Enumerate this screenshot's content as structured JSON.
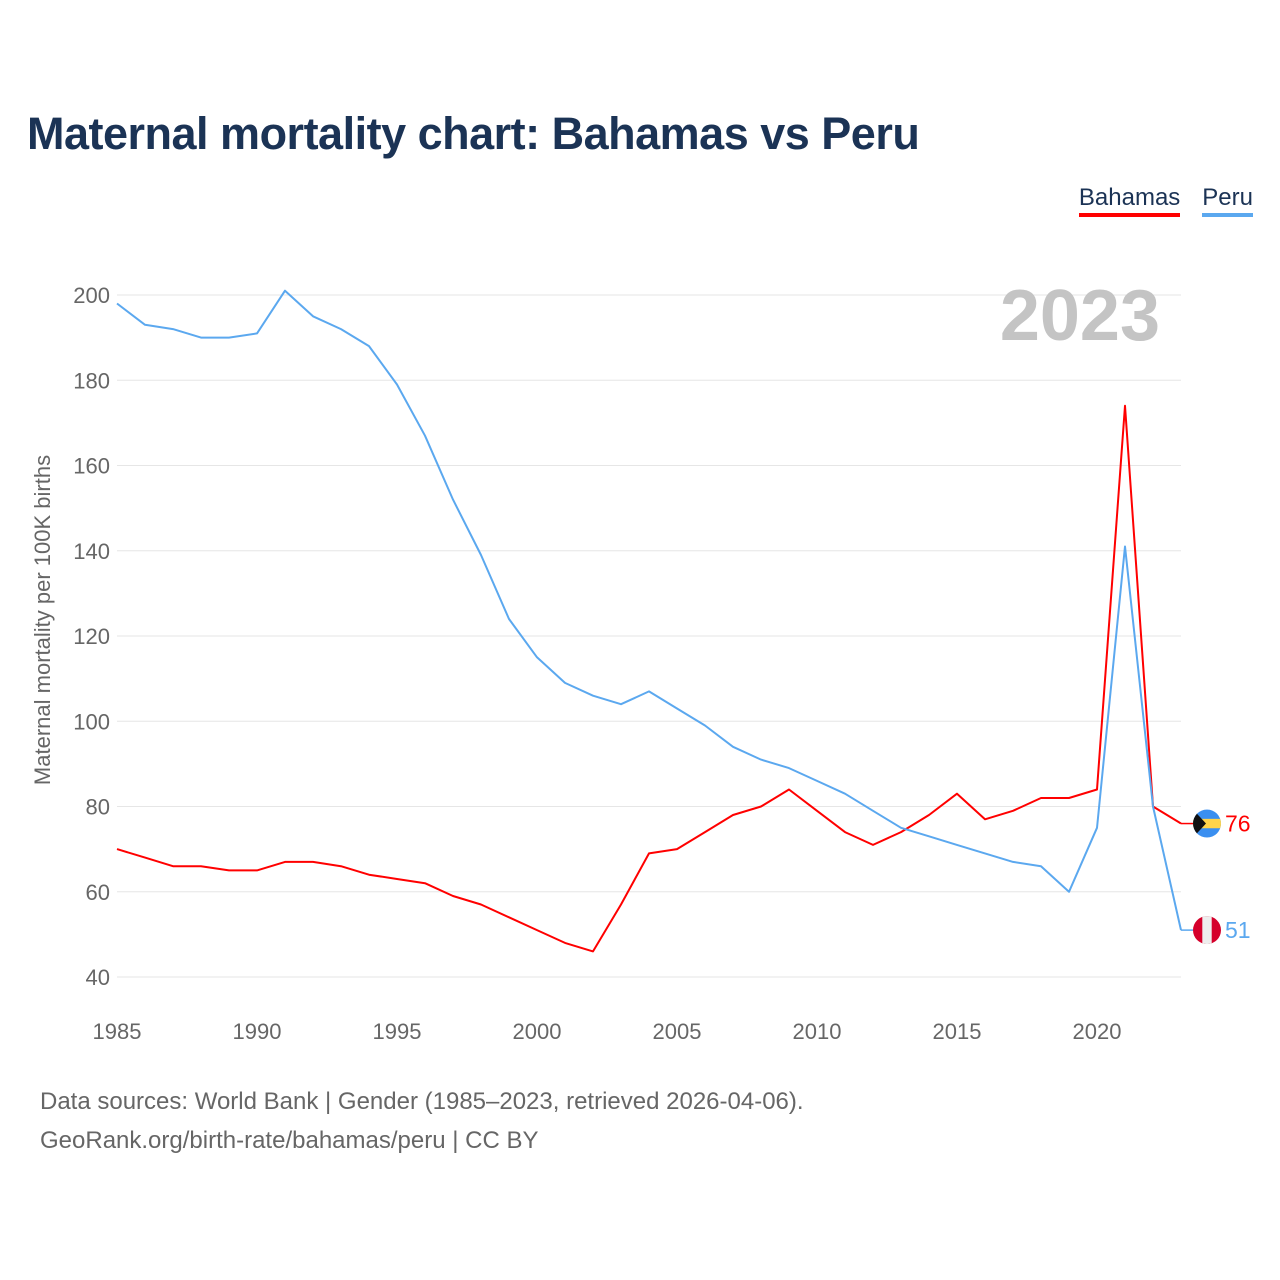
{
  "chart_data": {
    "type": "line",
    "title": "Maternal mortality chart: Bahamas vs Peru",
    "xlabel": "",
    "ylabel": "Maternal mortality per 100K births",
    "xlim": [
      1985,
      2023
    ],
    "ylim": [
      40,
      200
    ],
    "x_ticks": [
      "1985",
      "1990",
      "1995",
      "2000",
      "2005",
      "2010",
      "2015",
      "2020"
    ],
    "y_ticks": [
      "40",
      "60",
      "80",
      "100",
      "120",
      "140",
      "160",
      "180",
      "200"
    ],
    "grid": true,
    "legend_position": "top-right",
    "year_label": "2023",
    "x": [
      1985,
      1986,
      1987,
      1988,
      1989,
      1990,
      1991,
      1992,
      1993,
      1994,
      1995,
      1996,
      1997,
      1998,
      1999,
      2000,
      2001,
      2002,
      2003,
      2004,
      2005,
      2006,
      2007,
      2008,
      2009,
      2010,
      2011,
      2012,
      2013,
      2014,
      2015,
      2016,
      2017,
      2018,
      2019,
      2020,
      2021,
      2022,
      2023
    ],
    "series": [
      {
        "name": "Bahamas",
        "color": "#ff0000",
        "end_label": "76",
        "flag": "bahamas-flag",
        "values": [
          70,
          68,
          66,
          66,
          65,
          65,
          67,
          67,
          66,
          64,
          63,
          62,
          59,
          57,
          54,
          51,
          48,
          46,
          57,
          69,
          70,
          74,
          78,
          80,
          84,
          79,
          74,
          71,
          74,
          78,
          83,
          77,
          79,
          82,
          82,
          84,
          174,
          80,
          76
        ]
      },
      {
        "name": "Peru",
        "color": "#5ba8ef",
        "end_label": "51",
        "flag": "peru-flag",
        "values": [
          198,
          193,
          192,
          190,
          190,
          191,
          201,
          195,
          192,
          188,
          179,
          167,
          152,
          139,
          124,
          115,
          109,
          106,
          104,
          107,
          103,
          99,
          94,
          91,
          89,
          86,
          83,
          79,
          75,
          73,
          71,
          69,
          67,
          66,
          60,
          75,
          141,
          80,
          51
        ]
      }
    ]
  },
  "footer": {
    "line1": "Data sources: World Bank | Gender (1985–2023, retrieved 2026-04-06).",
    "line2": "GeoRank.org/birth-rate/bahamas/peru | CC BY"
  }
}
